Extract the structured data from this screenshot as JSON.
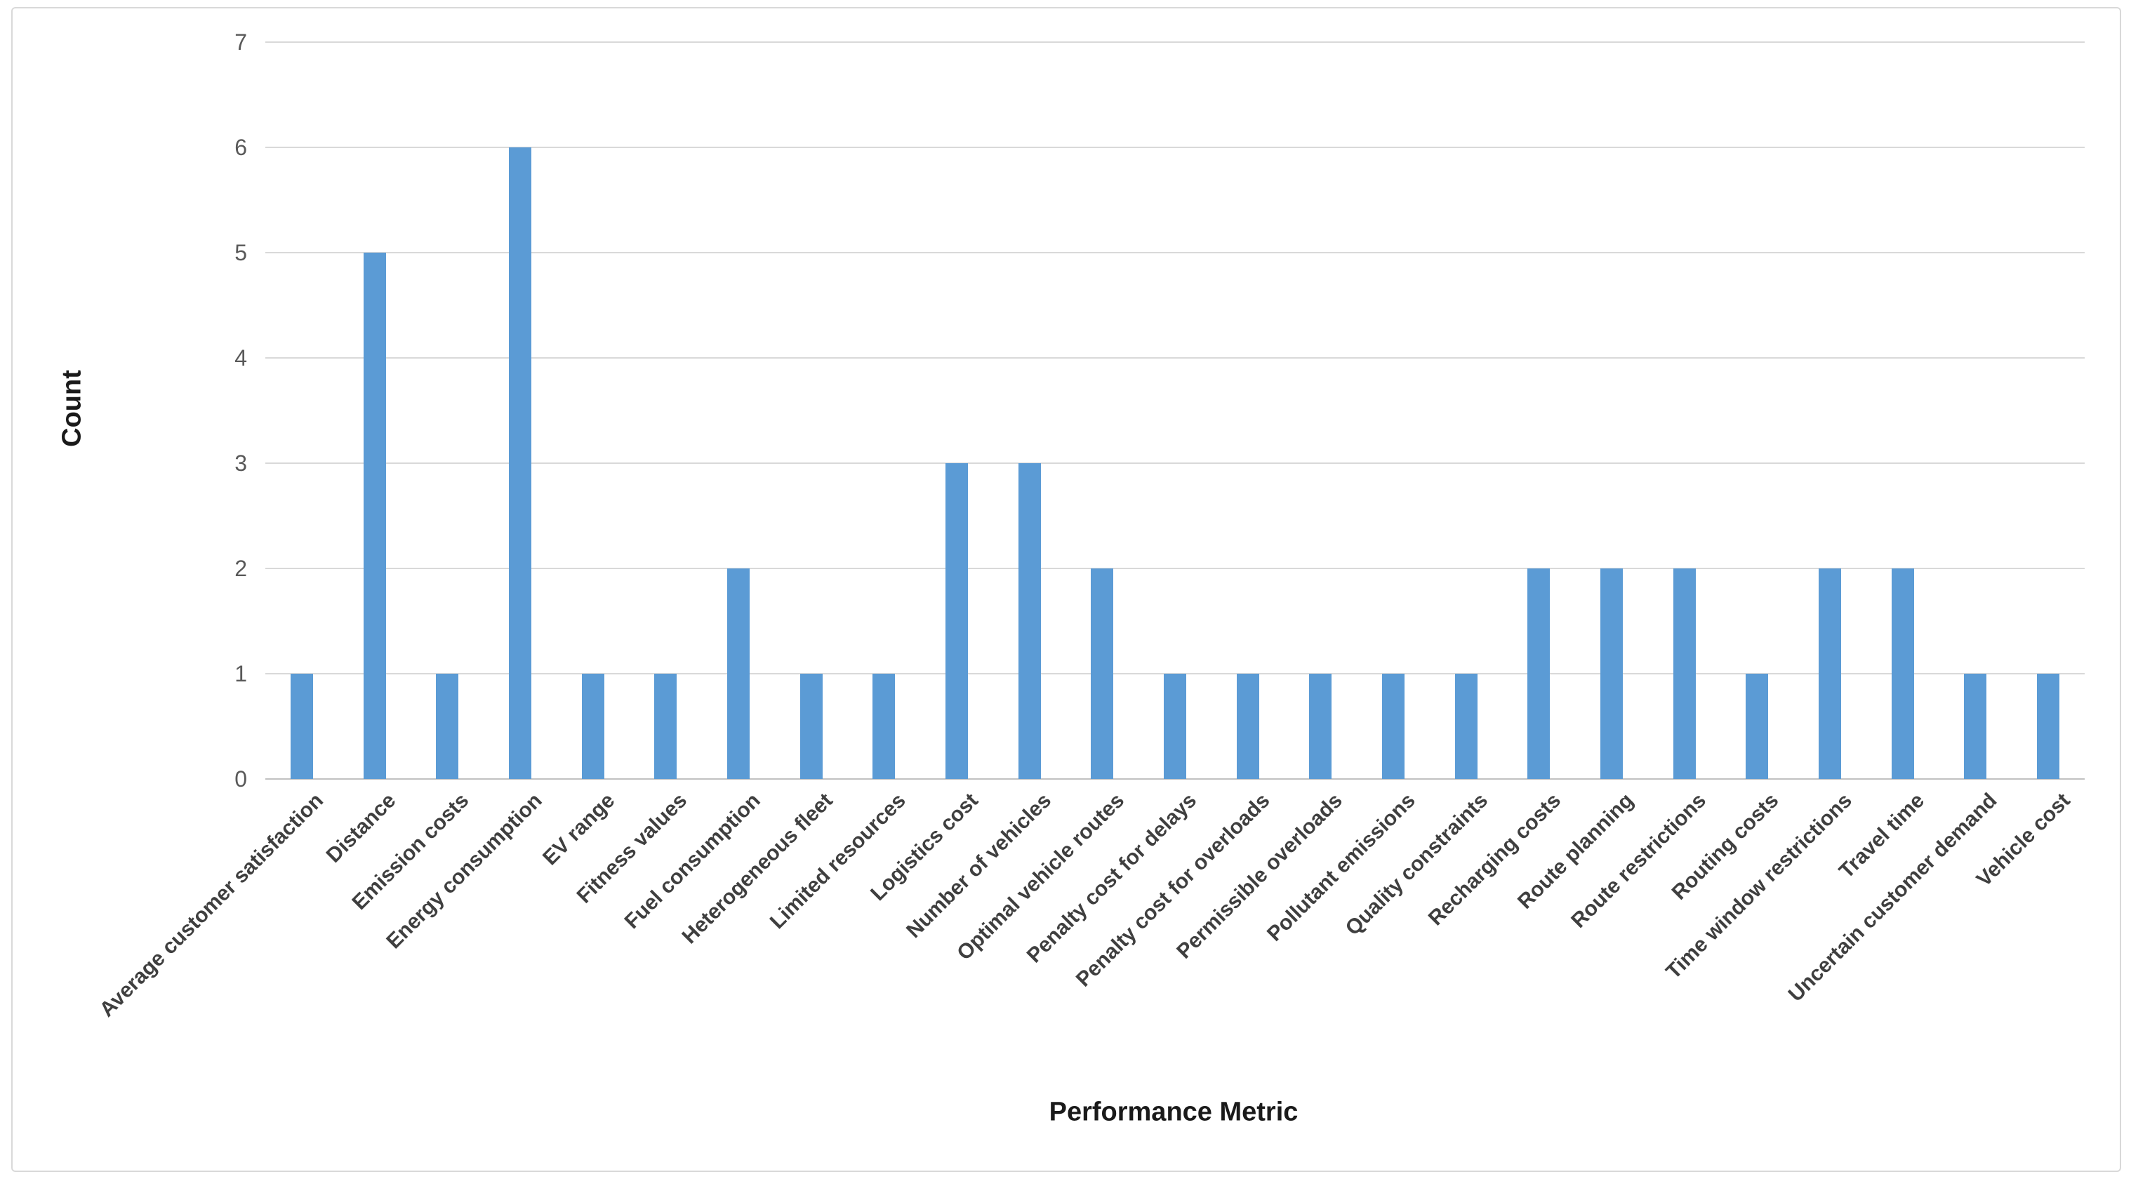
{
  "colors": {
    "bar": "#5B9BD5",
    "gridline": "#D9D9D9",
    "axis_line": "#C1C1C1",
    "tick_text": "#595959",
    "category_text": "#3F3F3F",
    "title_text": "#1A1A1A"
  },
  "chart_data": {
    "type": "bar",
    "title": "",
    "xlabel": "Performance Metric",
    "ylabel": "Count",
    "ylim": [
      0,
      7
    ],
    "yticks": [
      0,
      1,
      2,
      3,
      4,
      5,
      6,
      7
    ],
    "grid": true,
    "legend": false,
    "categories": [
      "Average customer satisfaction",
      "Distance",
      "Emission costs",
      "Energy consumption",
      "EV range",
      "Fitness values",
      "Fuel consumption",
      "Heterogeneous fleet",
      "Limited resources",
      "Logistics cost",
      "Number of vehicles",
      "Optimal vehicle routes",
      "Penalty cost for delays",
      "Penalty cost for overloads",
      "Permissible overloads",
      "Pollutant emissions",
      "Quality constraints",
      "Recharging costs",
      "Route planning",
      "Route restrictions",
      "Routing costs",
      "Time window restrictions",
      "Travel time",
      "Uncertain customer demand",
      "Vehicle cost"
    ],
    "values": [
      1,
      5,
      1,
      6,
      1,
      1,
      2,
      1,
      1,
      3,
      3,
      2,
      1,
      1,
      1,
      1,
      1,
      2,
      2,
      2,
      1,
      2,
      2,
      1,
      1
    ]
  }
}
